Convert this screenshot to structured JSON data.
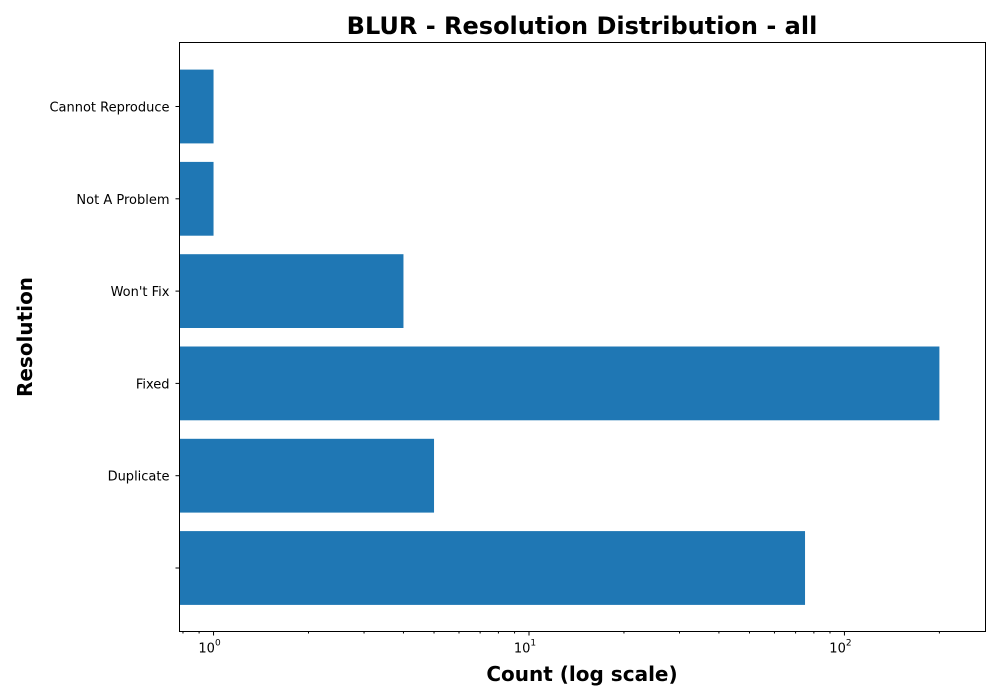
{
  "chart_data": {
    "type": "bar",
    "orientation": "horizontal",
    "title": "BLUR - Resolution Distribution - all",
    "xlabel": "Count (log scale)",
    "ylabel": "Resolution",
    "xscale": "log",
    "xlim": [
      0.78,
      280
    ],
    "grid": false,
    "color": "#1f77b4",
    "categories": [
      "",
      "Duplicate",
      "Fixed",
      "Won't Fix",
      "Not A Problem",
      "Cannot Reproduce"
    ],
    "values": [
      75,
      5,
      200,
      4,
      1,
      1
    ],
    "x_ticks": [
      {
        "base": "10",
        "exp": "0",
        "value": 1
      },
      {
        "base": "10",
        "exp": "1",
        "value": 10
      },
      {
        "base": "10",
        "exp": "2",
        "value": 100
      }
    ]
  }
}
